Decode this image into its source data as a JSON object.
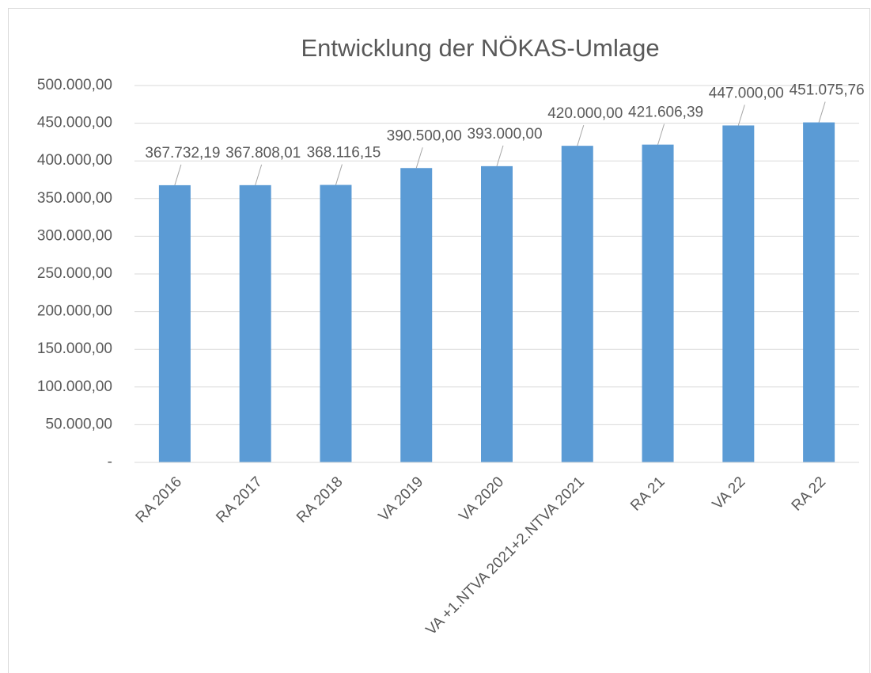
{
  "chart_data": {
    "type": "bar",
    "title": "Entwicklung der NÖKAS-Umlage",
    "categories": [
      "RA 2016",
      "RA 2017",
      "RA 2018",
      "VA 2019",
      "VA 2020",
      "VA +1.NTVA 2021+2.NTVA 2021",
      "RA 21",
      "VA 22",
      "RA 22"
    ],
    "values": [
      367732.19,
      367808.01,
      368116.15,
      390500.0,
      393000.0,
      420000.0,
      421606.39,
      447000.0,
      451075.76
    ],
    "value_labels": [
      "367.732,19",
      "367.808,01",
      "368.116,15",
      "390.500,00",
      "393.000,00",
      "420.000,00",
      "421.606,39",
      "447.000,00",
      "451.075,76"
    ],
    "color": "#5b9bd5",
    "ylim": [
      0,
      500000
    ],
    "yticks": [
      {
        "value": 0,
        "label": "-"
      },
      {
        "value": 50000,
        "label": "50.000,00"
      },
      {
        "value": 100000,
        "label": "100.000,00"
      },
      {
        "value": 150000,
        "label": "150.000,00"
      },
      {
        "value": 200000,
        "label": "200.000,00"
      },
      {
        "value": 250000,
        "label": "250.000,00"
      },
      {
        "value": 300000,
        "label": "300.000,00"
      },
      {
        "value": 350000,
        "label": "350.000,00"
      },
      {
        "value": 400000,
        "label": "400.000,00"
      },
      {
        "value": 450000,
        "label": "450.000,00"
      },
      {
        "value": 500000,
        "label": "500.000,00"
      }
    ],
    "grid": true
  }
}
